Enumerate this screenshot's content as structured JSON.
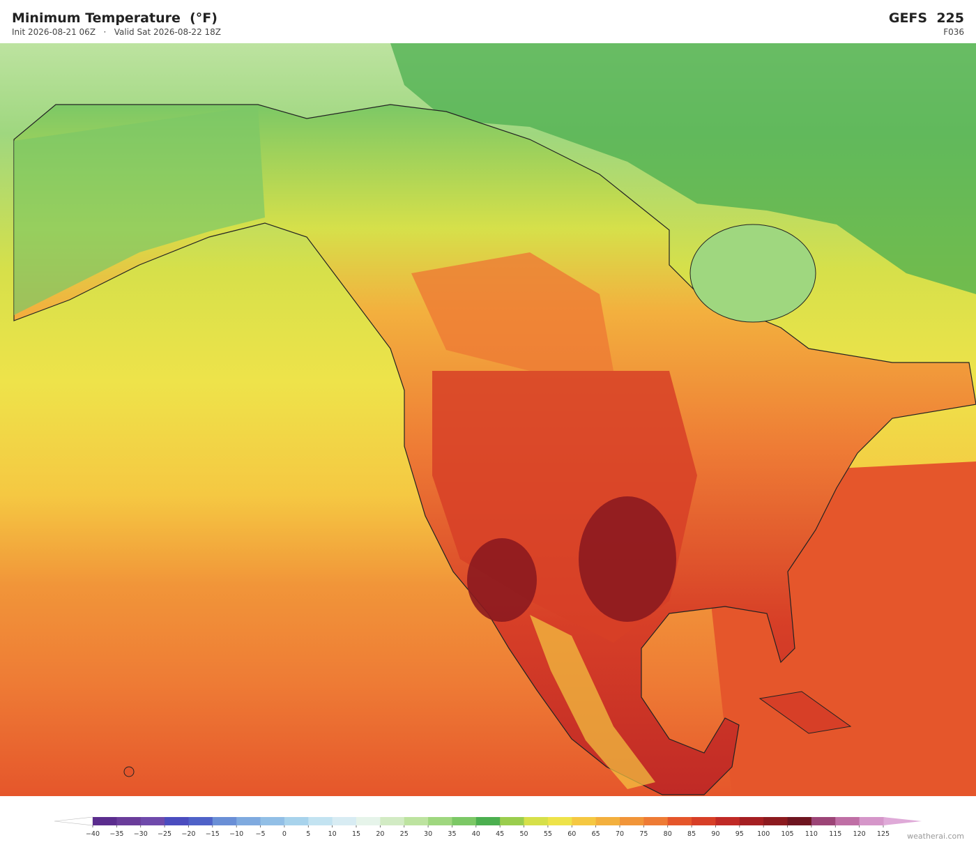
{
  "header": {
    "title": "Minimum Temperature  (°F)",
    "subtitle": "Init 2026-08-21 06Z   ·   Valid Sat 2026-08-22 18Z",
    "model": "GEFS  225",
    "forecast_hour": "F036"
  },
  "colorbar": {
    "ticks": [
      {
        "value": -40,
        "label": "−40"
      },
      {
        "value": -35,
        "label": "−35"
      },
      {
        "value": -30,
        "label": "−30"
      },
      {
        "value": -25,
        "label": "−25"
      },
      {
        "value": -20,
        "label": "−20"
      },
      {
        "value": -15,
        "label": "−15"
      },
      {
        "value": -10,
        "label": "−10"
      },
      {
        "value": -5,
        "label": "−5"
      },
      0,
      5,
      10,
      15,
      20,
      25,
      30,
      35,
      40,
      45,
      50,
      55,
      60,
      65,
      70,
      75,
      80,
      85,
      90,
      95,
      100,
      105,
      110,
      115,
      120,
      125
    ],
    "colors": [
      "#5b2d8e",
      "#6a3d9a",
      "#6f4aab",
      "#4b4dbf",
      "#4f62c8",
      "#6a8fd6",
      "#7faadf",
      "#92bfe6",
      "#a8d3ec",
      "#c3e3f1",
      "#d8ecf3",
      "#e6f4ea",
      "#d2ebc4",
      "#bde3a0",
      "#9fd77f",
      "#7cc866",
      "#4caf50",
      "#9acd4e",
      "#d6e04a",
      "#eee34a",
      "#f5c842",
      "#f3b03e",
      "#f19539",
      "#ee7b35",
      "#e5562b",
      "#d73f27",
      "#c02a26",
      "#a51f22",
      "#8c1a1f",
      "#6e1520",
      "#9c4577",
      "#bf6fa5",
      "#d596c9"
    ],
    "under_color": "#ffffff",
    "over_color": "#dfaad8"
  },
  "credit": "weatherai.com"
}
